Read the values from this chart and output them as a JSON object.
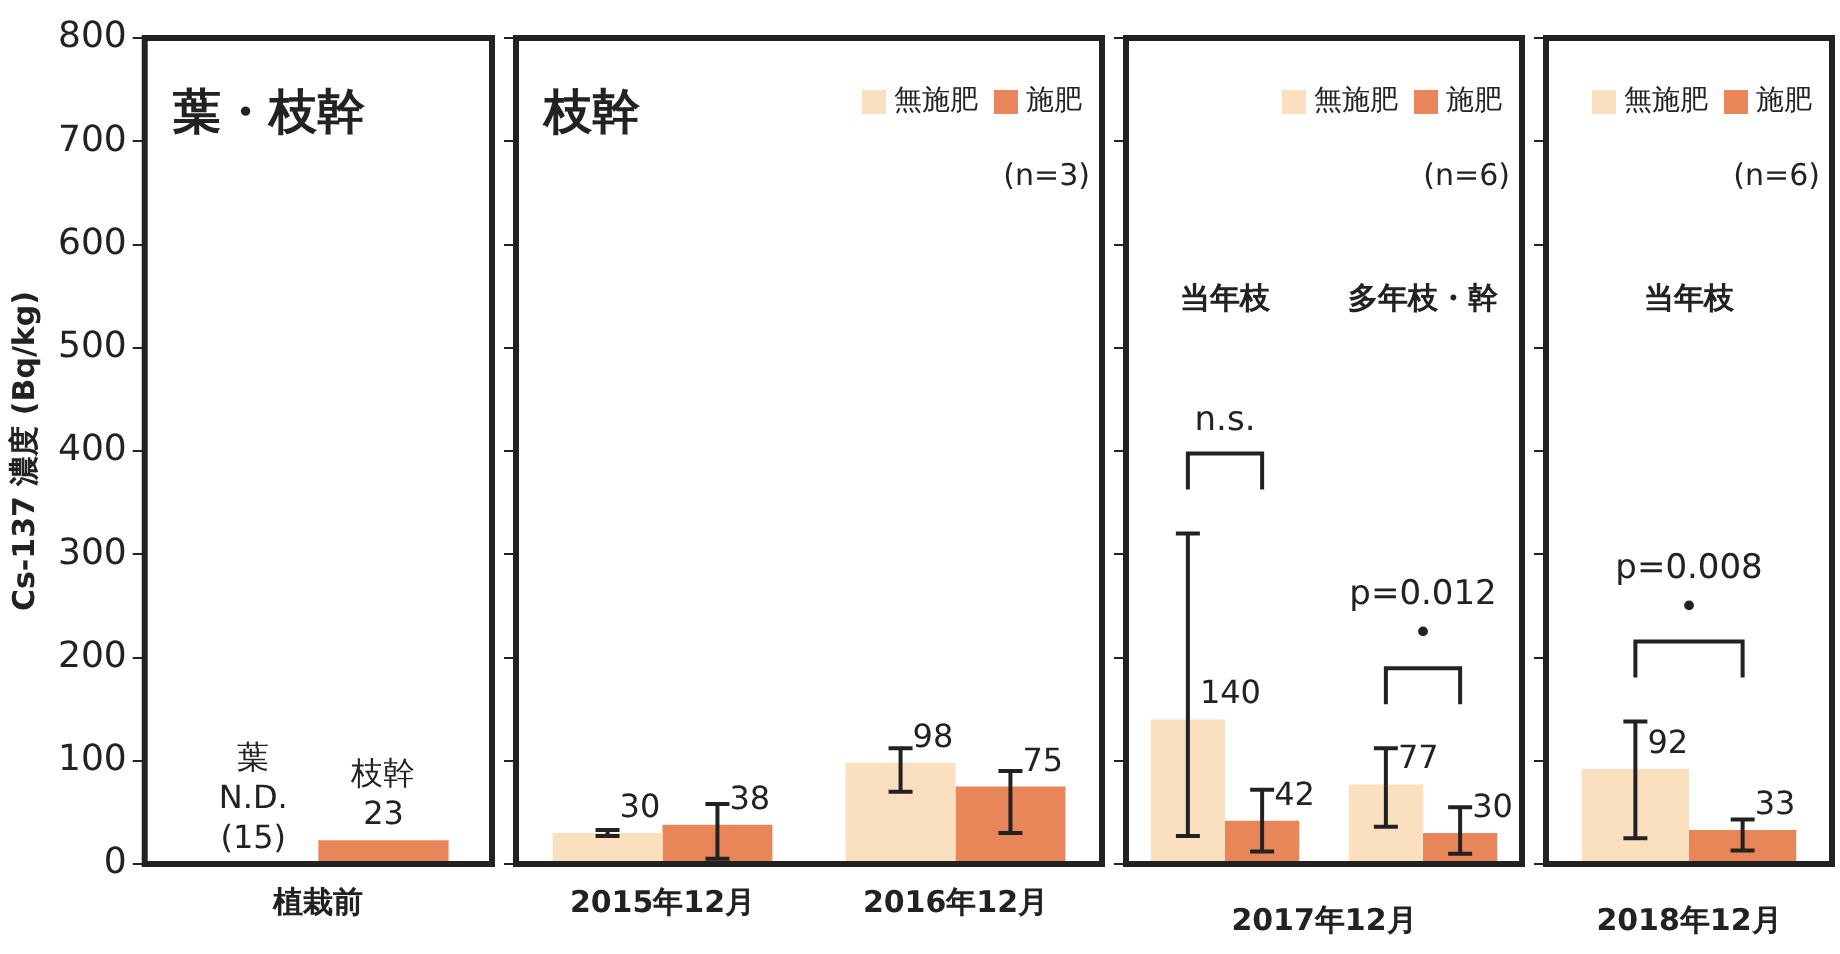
{
  "chart_data": [
    {
      "type": "bar",
      "title": "葉・枝幹",
      "ylabel": "Cs-137 濃度 (Bq/kg)",
      "categories": [
        "植栽前"
      ],
      "series": [
        {
          "name": "葉",
          "values": [
            null
          ],
          "value_labels": [
            "N.D.\n(15)"
          ]
        },
        {
          "name": "枝幹",
          "color": "#e8865a",
          "values": [
            23
          ],
          "value_labels": [
            "23"
          ]
        }
      ],
      "ylim": [
        0,
        800
      ],
      "yticks": [
        0,
        100,
        200,
        300,
        400,
        500,
        600,
        700,
        800
      ]
    },
    {
      "type": "bar",
      "title": "枝幹",
      "subtitle": "(n=3)",
      "categories": [
        "2015年12月",
        "2016年12月"
      ],
      "series": [
        {
          "name": "無施肥",
          "color": "#fbe0c0",
          "values": [
            30,
            98
          ],
          "errors": [
            3,
            [
              70,
              112
            ]
          ]
        },
        {
          "name": "施肥",
          "color": "#e8865a",
          "values": [
            38,
            75
          ],
          "errors": [
            [
              5,
              58
            ],
            [
              30,
              90
            ]
          ]
        }
      ],
      "ylim": [
        0,
        800
      ],
      "yticks": [
        0,
        100,
        200,
        300,
        400,
        500,
        600,
        700,
        800
      ],
      "legend": "top right",
      "data_labels": true,
      "tick_labels": "x"
    },
    {
      "type": "bar",
      "subtitle": "(n=6)",
      "xlabel": "2017年12月",
      "categories": [
        "当年枝",
        "多年枝・幹"
      ],
      "series": [
        {
          "name": "無施肥",
          "color": "#fbe0c0",
          "values": [
            140,
            77
          ],
          "errors": [
            [
              27,
              320
            ],
            [
              36,
              112
            ]
          ]
        },
        {
          "name": "施肥",
          "color": "#e8865a",
          "values": [
            42,
            30
          ],
          "errors": [
            [
              12,
              72
            ],
            [
              10,
              55
            ]
          ]
        }
      ],
      "annotations": [
        "n.s.",
        "p=0.012\n•"
      ],
      "ylim": [
        0,
        800
      ],
      "yticks": [
        0,
        100,
        200,
        300,
        400,
        500,
        600,
        700,
        800
      ],
      "legend": "top right",
      "data_labels": true,
      "tick_labels": "x"
    },
    {
      "type": "bar",
      "subtitle": "(n=6)",
      "xlabel": "2018年12月",
      "categories": [
        "当年枝"
      ],
      "series": [
        {
          "name": "無施肥",
          "color": "#fbe0c0",
          "values": [
            92
          ],
          "errors": [
            [
              25,
              138
            ]
          ]
        },
        {
          "name": "施肥",
          "color": "#e8865a",
          "values": [
            33
          ],
          "errors": [
            [
              13,
              43
            ]
          ]
        }
      ],
      "annotations": [
        "p=0.008\n•"
      ],
      "ylim": [
        0,
        800
      ],
      "yticks": [
        0,
        100,
        200,
        300,
        400,
        500,
        600,
        700,
        800
      ],
      "legend": "top right",
      "data_labels": true,
      "tick_labels": "x"
    }
  ]
}
